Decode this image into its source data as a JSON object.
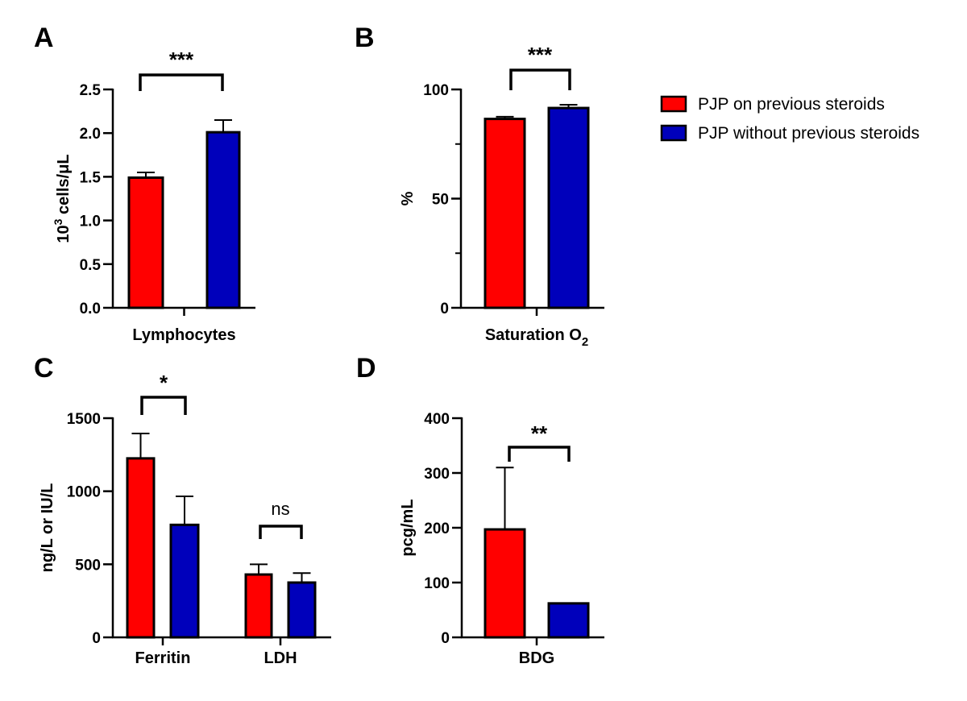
{
  "colors": {
    "with_steroids": "#ff0000",
    "without_steroids": "#0000bb",
    "axis": "#000000"
  },
  "legend": {
    "placement": "top-right",
    "entries": [
      {
        "label": "PJP on previous steroids",
        "color_key": "with_steroids"
      },
      {
        "label": "PJP without previous steroids",
        "color_key": "without_steroids"
      }
    ]
  },
  "chart_data": [
    {
      "panel": "A",
      "type": "bar",
      "ylabel": "10³ cells/μL",
      "ylabel_main": "10",
      "ylabel_sup": "3",
      "ylabel_rest": " cells/μL",
      "ylim": [
        0,
        2.5
      ],
      "yticks": [
        "0.0",
        "0.5",
        "1.0",
        "1.5",
        "2.0",
        "2.5"
      ],
      "categories": [
        "Lymphocytes"
      ],
      "series": [
        {
          "name": "PJP on previous steroids",
          "values": [
            1.49
          ],
          "error": [
            0.06
          ]
        },
        {
          "name": "PJP without previous steroids",
          "values": [
            2.01
          ],
          "error": [
            0.14
          ]
        }
      ],
      "significance": [
        {
          "category": "Lymphocytes",
          "label": "***"
        }
      ]
    },
    {
      "panel": "B",
      "type": "bar",
      "ylabel": "%",
      "ylim": [
        0,
        100
      ],
      "yticks": [
        "0",
        "50",
        "100"
      ],
      "categories": [
        "Saturation O₂"
      ],
      "xlabel_main": "Saturation O",
      "xlabel_sub": "2",
      "series": [
        {
          "name": "PJP on previous steroids",
          "values": [
            86.5
          ],
          "error": [
            1.0
          ]
        },
        {
          "name": "PJP without previous steroids",
          "values": [
            91.5
          ],
          "error": [
            1.5
          ]
        }
      ],
      "significance": [
        {
          "category": "Saturation O₂",
          "label": "***"
        }
      ]
    },
    {
      "panel": "C",
      "type": "bar",
      "ylabel": "ng/L or IU/L",
      "ylim": [
        0,
        1500
      ],
      "yticks": [
        "0",
        "500",
        "1000",
        "1500"
      ],
      "categories": [
        "Ferritin",
        "LDH"
      ],
      "series": [
        {
          "name": "PJP on previous steroids",
          "values": [
            1225,
            430
          ],
          "error": [
            170,
            70
          ]
        },
        {
          "name": "PJP without previous steroids",
          "values": [
            770,
            375
          ],
          "error": [
            195,
            65
          ]
        }
      ],
      "significance": [
        {
          "category": "Ferritin",
          "label": "*"
        },
        {
          "category": "LDH",
          "label": "ns"
        }
      ]
    },
    {
      "panel": "D",
      "type": "bar",
      "ylabel": "pcg/mL",
      "ylim": [
        0,
        400
      ],
      "yticks": [
        "0",
        "100",
        "200",
        "300",
        "400"
      ],
      "categories": [
        "BDG"
      ],
      "series": [
        {
          "name": "PJP on previous steroids",
          "values": [
            197
          ],
          "error": [
            113
          ]
        },
        {
          "name": "PJP without previous steroids",
          "values": [
            62
          ],
          "error": [
            0
          ]
        }
      ],
      "significance": [
        {
          "category": "BDG",
          "label": "**"
        }
      ]
    }
  ]
}
